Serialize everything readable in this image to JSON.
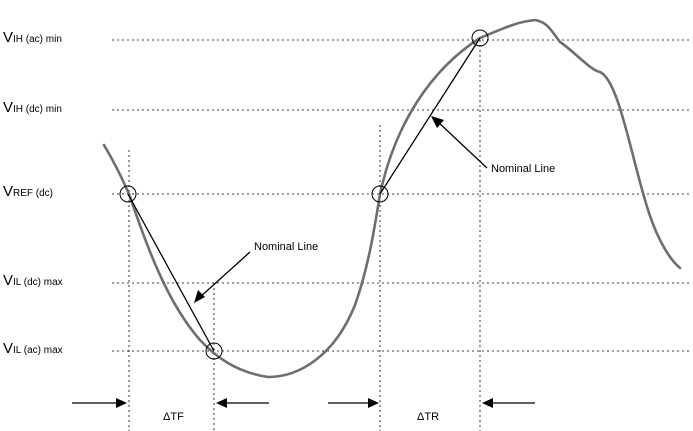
{
  "levels": [
    {
      "id": "vih_ac_min",
      "main": "V",
      "sub": "IH (ac) min"
    },
    {
      "id": "vih_dc_min",
      "main": "V",
      "sub": "IH (dc) min"
    },
    {
      "id": "vref_dc",
      "main": "V",
      "sub": "REF (dc)"
    },
    {
      "id": "vil_dc_max",
      "main": "V",
      "sub": "IL (dc) max"
    },
    {
      "id": "vil_ac_max",
      "main": "V",
      "sub": "IL (ac) max"
    }
  ],
  "annotations": {
    "nominal_line_fall": "Nominal Line",
    "nominal_line_rise": "Nominal Line",
    "delta_tf": "ΔTF",
    "delta_tr": "ΔTR"
  },
  "colors": {
    "waveform": "#6e6e6e",
    "lines": "#000000",
    "background": "#ffffff"
  }
}
